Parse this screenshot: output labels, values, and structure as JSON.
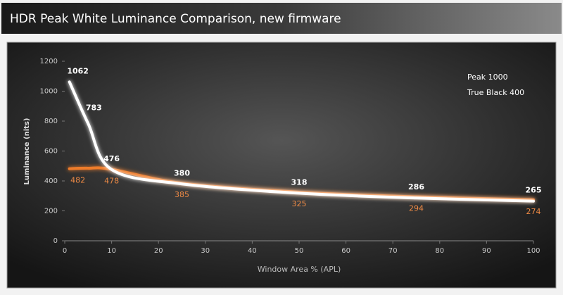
{
  "chart_data": {
    "type": "line",
    "title": "HDR Peak White Luminance Comparison, new firmware",
    "x_label": "Window Area % (APL)",
    "y_label": "Luminance (nits)",
    "x": [
      1,
      5,
      10,
      25,
      50,
      75,
      100
    ],
    "series": [
      {
        "name": "Peak 1000",
        "color": "#ffffff",
        "values": [
          1062,
          783,
          476,
          380,
          318,
          286,
          265
        ]
      },
      {
        "name": "True Black 400",
        "color": "#ee7b2c",
        "values": [
          482,
          485,
          478,
          385,
          325,
          294,
          274
        ],
        "value_labels": [
          "482",
          null,
          "478",
          "385",
          "325",
          "294",
          "274"
        ]
      }
    ],
    "xlim": [
      0,
      100
    ],
    "xticks": [
      0,
      10,
      20,
      30,
      40,
      50,
      60,
      70,
      80,
      90,
      100
    ],
    "ylim": [
      0,
      1200
    ],
    "yticks": [
      0,
      200,
      400,
      600,
      800,
      1000,
      1200
    ],
    "legend": "top-right"
  }
}
